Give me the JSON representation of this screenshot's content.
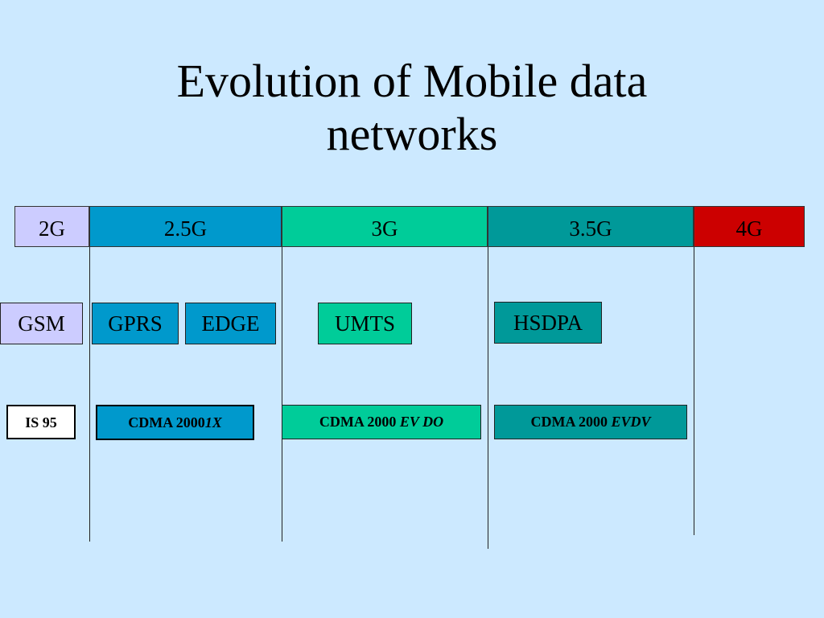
{
  "title": {
    "line1": "Evolution of Mobile data",
    "line2": "networks"
  },
  "generations": [
    {
      "label": "2G",
      "color": "#ccccff"
    },
    {
      "label": "2.5G",
      "color": "#0099cc"
    },
    {
      "label": "3G",
      "color": "#00cc99"
    },
    {
      "label": "3.5G",
      "color": "#009999"
    },
    {
      "label": "4G",
      "color": "#cc0000"
    }
  ],
  "technologies": {
    "gsm": "GSM",
    "gprs": "GPRS",
    "edge": "EDGE",
    "umts": "UMTS",
    "hsdpa": "HSDPA",
    "is95": "IS 95",
    "cdma2000_prefix": "CDMA 2000",
    "cdma_1x": "1X",
    "cdma_evdo": "EV DO",
    "cdma_evdv": "EVDV"
  }
}
